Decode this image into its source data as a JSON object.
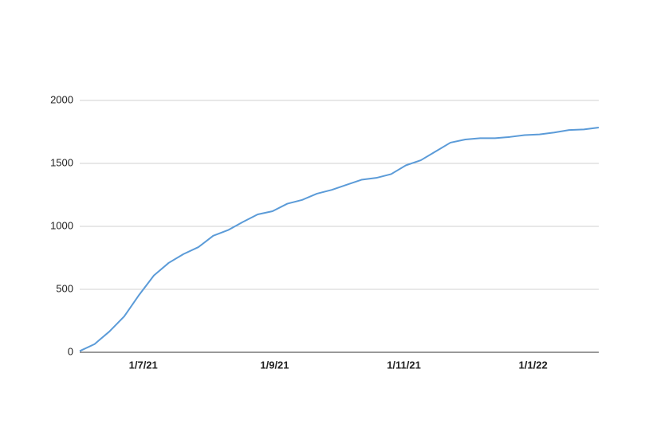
{
  "chart_data": {
    "type": "line",
    "color": "#5b9bd8",
    "grid": true,
    "x": [
      "2021-06-01",
      "2021-06-08",
      "2021-06-15",
      "2021-06-22",
      "2021-06-29",
      "2021-07-06",
      "2021-07-13",
      "2021-07-20",
      "2021-07-27",
      "2021-08-03",
      "2021-08-10",
      "2021-08-17",
      "2021-08-24",
      "2021-08-31",
      "2021-09-07",
      "2021-09-14",
      "2021-09-21",
      "2021-09-28",
      "2021-10-05",
      "2021-10-12",
      "2021-10-19",
      "2021-10-26",
      "2021-11-02",
      "2021-11-09",
      "2021-11-16",
      "2021-11-23",
      "2021-11-30",
      "2021-12-07",
      "2021-12-14",
      "2021-12-21",
      "2021-12-28",
      "2022-01-04",
      "2022-01-11",
      "2022-01-18",
      "2022-01-25",
      "2022-02-01"
    ],
    "values": [
      10,
      65,
      165,
      285,
      455,
      610,
      710,
      780,
      835,
      925,
      970,
      1035,
      1095,
      1120,
      1180,
      1210,
      1260,
      1290,
      1330,
      1370,
      1385,
      1415,
      1485,
      1525,
      1595,
      1665,
      1690,
      1700,
      1700,
      1710,
      1725,
      1730,
      1745,
      1765,
      1770,
      1785
    ],
    "xlim": [
      "2021-06-01",
      "2022-02-01"
    ],
    "xticks": [
      {
        "value": "2021-07-01",
        "label": "1/7/21"
      },
      {
        "value": "2021-09-01",
        "label": "1/9/21"
      },
      {
        "value": "2021-11-01",
        "label": "1/11/21"
      },
      {
        "value": "2022-01-01",
        "label": "1/1/22"
      }
    ],
    "ylim": [
      0,
      2000
    ],
    "yticks": [
      0,
      500,
      1000,
      1500,
      2000
    ]
  }
}
